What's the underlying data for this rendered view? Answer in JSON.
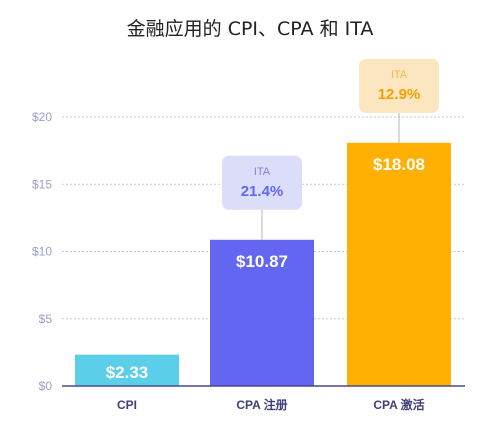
{
  "chart_data": {
    "type": "bar",
    "title": "金融应用的 CPI、CPA 和 ITA",
    "categories": [
      "CPI",
      "CPA 注册",
      "CPA 激活"
    ],
    "values": [
      2.33,
      10.87,
      18.08
    ],
    "value_labels": [
      "$2.33",
      "$10.87",
      "$18.08"
    ],
    "bar_colors": [
      "#5BCFEA",
      "#6366F1",
      "#FFB000"
    ],
    "ylim": [
      0,
      20
    ],
    "yticks": [
      0,
      5,
      10,
      15,
      20
    ],
    "ytick_labels": [
      "$0",
      "$5",
      "$10",
      "$15",
      "$20"
    ],
    "grid": true,
    "ita_badges": [
      null,
      {
        "label": "ITA",
        "value": "21.4%",
        "bg": "#DCDDF9",
        "label_color": "#7B82E6",
        "value_color": "#6366F1"
      },
      {
        "label": "ITA",
        "value": "12.9%",
        "bg": "#FCE6BF",
        "label_color": "#F5B94A",
        "value_color": "#F2A200"
      }
    ]
  }
}
